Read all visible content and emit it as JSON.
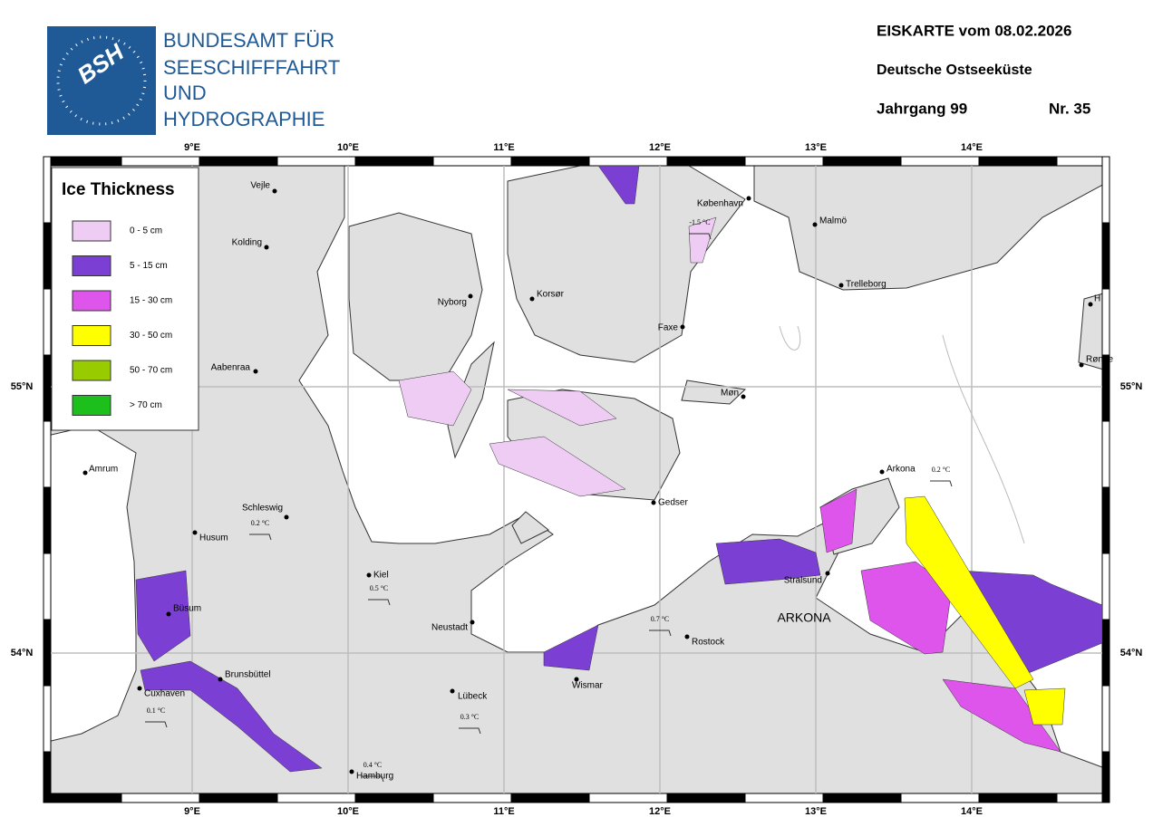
{
  "header": {
    "logo": "BSH",
    "organization": [
      "BUNDESAMT FÜR",
      "SEESCHIFFFAHRT",
      "UND",
      "HYDROGRAPHIE"
    ],
    "title": "EISKARTE vom 08.02.2026",
    "region": "Deutsche Ostseeküste",
    "volume": "Jahrgang 99",
    "number": "Nr. 35"
  },
  "legend": {
    "title": "Ice Thickness",
    "items": [
      {
        "label": "0 - 5 cm",
        "color": "#eeccf4"
      },
      {
        "label": "5 - 15 cm",
        "color": "#7b3fd4"
      },
      {
        "label": "15 - 30 cm",
        "color": "#dd55ea"
      },
      {
        "label": "30 - 50 cm",
        "color": "#ffff00"
      },
      {
        "label": "50 - 70 cm",
        "color": "#99cc00"
      },
      {
        "label": "> 70 cm",
        "color": "#1dbf1d"
      }
    ]
  },
  "graticule": {
    "longitudes": [
      {
        "value": 9,
        "label": "9°E"
      },
      {
        "value": 10,
        "label": "10°E"
      },
      {
        "value": 11,
        "label": "11°E"
      },
      {
        "value": 12,
        "label": "12°E"
      },
      {
        "value": 13,
        "label": "13°E"
      },
      {
        "value": 14,
        "label": "14°E"
      }
    ],
    "latitudes": [
      {
        "value": 55,
        "label": "55°N"
      },
      {
        "value": 54,
        "label": "54°N"
      }
    ]
  },
  "places": [
    "Vejle",
    "Kolding",
    "Nyborg",
    "Korsør",
    "København",
    "Malmö",
    "Trelleborg",
    "Faxe",
    "Møn",
    "Aabenraa",
    "Amrum",
    "Schleswig",
    "Husum",
    "Kiel",
    "Neustadt",
    "Büsum",
    "Brunsbüttel",
    "Cuxhaven",
    "Lübeck",
    "Wismar",
    "Rostock",
    "Gedser",
    "Stralsund",
    "Arkona",
    "Hamburg",
    "Rønne",
    "H"
  ],
  "temperatures": [
    "-1.5 °C",
    "0.2 °C",
    "0.5 °C",
    "0.7 °C",
    "0.3 °C",
    "0.1 °C",
    "0.4 °C",
    "0.2 °C"
  ],
  "area_label": "ARKONA"
}
